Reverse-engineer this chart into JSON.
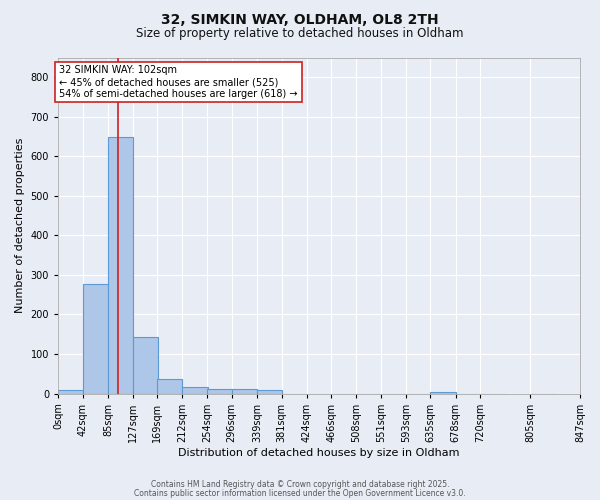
{
  "title": "32, SIMKIN WAY, OLDHAM, OL8 2TH",
  "subtitle": "Size of property relative to detached houses in Oldham",
  "xlabel": "Distribution of detached houses by size in Oldham",
  "ylabel": "Number of detached properties",
  "bar_values": [
    8,
    278,
    648,
    142,
    36,
    16,
    12,
    12,
    8,
    0,
    0,
    0,
    0,
    0,
    0,
    5,
    0,
    0,
    0
  ],
  "bar_left_edges": [
    0,
    42,
    85,
    127,
    169,
    212,
    254,
    296,
    339,
    381,
    424,
    466,
    508,
    551,
    593,
    635,
    678,
    720,
    805
  ],
  "bin_width": 43,
  "bar_color": "#aec6e8",
  "bar_edge_color": "#5b9bd5",
  "categories": [
    "0sqm",
    "42sqm",
    "85sqm",
    "127sqm",
    "169sqm",
    "212sqm",
    "254sqm",
    "296sqm",
    "339sqm",
    "381sqm",
    "424sqm",
    "466sqm",
    "508sqm",
    "551sqm",
    "593sqm",
    "635sqm",
    "678sqm",
    "720sqm",
    "805sqm",
    "847sqm"
  ],
  "ylim": [
    0,
    850
  ],
  "yticks": [
    0,
    100,
    200,
    300,
    400,
    500,
    600,
    700,
    800
  ],
  "property_size": 102,
  "vline_color": "#cc2222",
  "annotation_text": "32 SIMKIN WAY: 102sqm\n← 45% of detached houses are smaller (525)\n54% of semi-detached houses are larger (618) →",
  "annotation_box_color": "#ffffff",
  "annotation_border_color": "#cc2222",
  "background_color": "#e8edf5",
  "grid_color": "#ffffff",
  "footer_line1": "Contains HM Land Registry data © Crown copyright and database right 2025.",
  "footer_line2": "Contains public sector information licensed under the Open Government Licence v3.0."
}
